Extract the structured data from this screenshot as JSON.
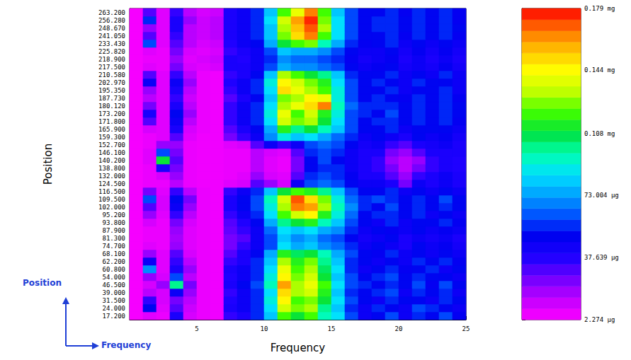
{
  "chart_data": {
    "type": "heatmap",
    "xlabel": "Frequency",
    "ylabel": "Position",
    "annotations": [
      "Position",
      "Frequency"
    ],
    "grid": false,
    "xlim": [
      0,
      25
    ],
    "xticks": [
      5,
      10,
      15,
      20,
      25
    ],
    "x": [
      0.5,
      1.5,
      2.5,
      3.5,
      4.5,
      5.5,
      6.5,
      7.5,
      8.5,
      9.5,
      10.5,
      11.5,
      12.5,
      13.5,
      14.5,
      15.5,
      16.5,
      17.5,
      18.5,
      19.5,
      20.5,
      21.5,
      22.5,
      23.5,
      24.5
    ],
    "categories": [
      "17.200",
      "24.000",
      "31.500",
      "39.000",
      "46.500",
      "54.000",
      "60.800",
      "62.200",
      "68.100",
      "74.700",
      "81.300",
      "87.900",
      "93.800",
      "95.200",
      "102.000",
      "109.500",
      "116.500",
      "124.500",
      "132.000",
      "138.800",
      "140.200",
      "146.100",
      "152.700",
      "159.300",
      "165.900",
      "171.800",
      "173.200",
      "180.120",
      "187.730",
      "195.350",
      "202.970",
      "210.580",
      "217.500",
      "218.900",
      "225.820",
      "233.430",
      "241.050",
      "248.670",
      "256.280",
      "263.200"
    ],
    "values": [
      [
        4,
        8,
        6,
        40,
        10,
        6,
        5,
        35,
        40,
        55,
        80,
        120,
        110,
        120,
        95,
        85,
        60,
        45,
        50,
        60,
        45,
        55,
        50,
        60,
        48
      ],
      [
        4,
        50,
        8,
        30,
        12,
        6,
        5,
        40,
        45,
        55,
        85,
        135,
        125,
        130,
        100,
        80,
        55,
        45,
        55,
        50,
        45,
        60,
        55,
        50,
        45
      ],
      [
        4,
        35,
        10,
        25,
        15,
        6,
        5,
        38,
        45,
        55,
        90,
        145,
        120,
        125,
        110,
        85,
        60,
        50,
        45,
        55,
        50,
        50,
        45,
        55,
        50
      ],
      [
        4,
        15,
        10,
        45,
        20,
        6,
        5,
        35,
        45,
        55,
        85,
        150,
        130,
        135,
        115,
        80,
        55,
        50,
        55,
        60,
        45,
        55,
        50,
        55,
        45
      ],
      [
        4,
        10,
        20,
        100,
        25,
        6,
        5,
        40,
        50,
        60,
        95,
        160,
        130,
        140,
        120,
        85,
        60,
        55,
        50,
        55,
        50,
        60,
        48,
        60,
        50
      ],
      [
        4,
        20,
        10,
        60,
        15,
        6,
        5,
        38,
        45,
        55,
        90,
        145,
        125,
        135,
        110,
        80,
        60,
        50,
        55,
        60,
        50,
        55,
        50,
        50,
        45
      ],
      [
        4,
        70,
        8,
        40,
        20,
        6,
        5,
        40,
        45,
        55,
        85,
        140,
        120,
        130,
        105,
        85,
        55,
        45,
        50,
        55,
        48,
        50,
        55,
        45,
        50
      ],
      [
        4,
        45,
        8,
        35,
        15,
        6,
        5,
        35,
        40,
        55,
        80,
        130,
        115,
        125,
        100,
        80,
        55,
        50,
        45,
        50,
        45,
        55,
        50,
        55,
        48
      ],
      [
        4,
        20,
        8,
        30,
        10,
        6,
        5,
        30,
        40,
        50,
        75,
        115,
        105,
        110,
        95,
        75,
        60,
        50,
        48,
        55,
        45,
        50,
        45,
        50,
        45
      ],
      [
        4,
        8,
        6,
        20,
        8,
        6,
        5,
        25,
        35,
        45,
        60,
        85,
        75,
        80,
        70,
        65,
        55,
        45,
        50,
        45,
        40,
        50,
        45,
        48,
        42
      ],
      [
        4,
        6,
        6,
        18,
        8,
        6,
        5,
        25,
        30,
        45,
        60,
        80,
        70,
        75,
        65,
        60,
        50,
        42,
        45,
        50,
        40,
        45,
        42,
        45,
        40
      ],
      [
        4,
        6,
        6,
        20,
        8,
        6,
        5,
        28,
        35,
        45,
        65,
        85,
        80,
        85,
        75,
        70,
        55,
        45,
        50,
        48,
        45,
        50,
        45,
        48,
        45
      ],
      [
        4,
        10,
        6,
        25,
        10,
        6,
        5,
        30,
        38,
        50,
        75,
        100,
        110,
        115,
        95,
        80,
        60,
        50,
        45,
        55,
        45,
        50,
        50,
        55,
        48
      ],
      [
        4,
        20,
        8,
        35,
        15,
        6,
        5,
        35,
        45,
        55,
        85,
        120,
        135,
        145,
        115,
        90,
        65,
        50,
        55,
        55,
        50,
        55,
        45,
        50,
        45
      ],
      [
        4,
        30,
        10,
        45,
        20,
        6,
        5,
        40,
        50,
        60,
        90,
        130,
        165,
        160,
        130,
        95,
        70,
        55,
        50,
        60,
        50,
        55,
        50,
        55,
        50
      ],
      [
        4,
        60,
        10,
        50,
        25,
        6,
        5,
        40,
        50,
        60,
        95,
        135,
        170,
        150,
        125,
        90,
        65,
        55,
        60,
        55,
        50,
        55,
        50,
        60,
        50
      ],
      [
        4,
        25,
        8,
        35,
        15,
        6,
        5,
        35,
        45,
        55,
        80,
        110,
        120,
        115,
        100,
        80,
        60,
        50,
        50,
        55,
        45,
        50,
        45,
        50,
        45
      ],
      [
        4,
        6,
        6,
        15,
        6,
        5,
        5,
        8,
        10,
        30,
        20,
        10,
        45,
        60,
        65,
        60,
        50,
        45,
        45,
        40,
        25,
        45,
        40,
        45,
        40
      ],
      [
        4,
        6,
        10,
        20,
        6,
        5,
        5,
        6,
        8,
        20,
        10,
        8,
        30,
        55,
        60,
        55,
        48,
        40,
        40,
        30,
        20,
        35,
        40,
        45,
        40
      ],
      [
        4,
        6,
        40,
        25,
        6,
        5,
        5,
        6,
        6,
        15,
        8,
        6,
        25,
        50,
        55,
        55,
        45,
        40,
        35,
        25,
        15,
        25,
        35,
        40,
        38
      ],
      [
        4,
        8,
        110,
        30,
        6,
        5,
        5,
        6,
        6,
        15,
        8,
        6,
        25,
        50,
        60,
        50,
        45,
        40,
        35,
        20,
        15,
        20,
        35,
        40,
        38
      ],
      [
        4,
        8,
        60,
        25,
        6,
        5,
        5,
        6,
        6,
        15,
        10,
        8,
        30,
        55,
        60,
        55,
        45,
        40,
        40,
        25,
        20,
        30,
        40,
        40,
        40
      ],
      [
        4,
        6,
        20,
        20,
        6,
        5,
        5,
        8,
        10,
        30,
        45,
        35,
        45,
        60,
        65,
        60,
        50,
        42,
        45,
        35,
        30,
        40,
        42,
        45,
        40
      ],
      [
        4,
        6,
        8,
        30,
        8,
        5,
        5,
        25,
        35,
        45,
        70,
        90,
        80,
        85,
        75,
        65,
        55,
        45,
        50,
        45,
        40,
        50,
        45,
        48,
        42
      ],
      [
        4,
        10,
        8,
        40,
        10,
        6,
        5,
        30,
        40,
        50,
        75,
        115,
        100,
        110,
        95,
        80,
        60,
        50,
        50,
        55,
        45,
        50,
        50,
        50,
        45
      ],
      [
        4,
        30,
        8,
        45,
        15,
        6,
        5,
        35,
        45,
        55,
        85,
        135,
        125,
        130,
        110,
        85,
        60,
        50,
        55,
        55,
        50,
        55,
        50,
        55,
        48
      ],
      [
        4,
        40,
        8,
        50,
        20,
        6,
        5,
        35,
        45,
        55,
        90,
        140,
        120,
        135,
        115,
        90,
        60,
        55,
        50,
        60,
        50,
        55,
        50,
        55,
        50
      ],
      [
        4,
        25,
        8,
        40,
        15,
        6,
        5,
        35,
        45,
        55,
        85,
        130,
        140,
        150,
        165,
        95,
        65,
        55,
        55,
        55,
        50,
        55,
        50,
        55,
        50
      ],
      [
        4,
        15,
        8,
        35,
        12,
        6,
        5,
        30,
        40,
        50,
        80,
        125,
        130,
        145,
        140,
        90,
        60,
        50,
        55,
        50,
        48,
        55,
        50,
        55,
        48
      ],
      [
        4,
        20,
        8,
        40,
        15,
        6,
        5,
        35,
        45,
        55,
        85,
        150,
        140,
        130,
        120,
        90,
        60,
        50,
        50,
        55,
        45,
        50,
        50,
        55,
        45
      ],
      [
        4,
        45,
        8,
        45,
        20,
        6,
        5,
        38,
        45,
        55,
        90,
        145,
        135,
        125,
        115,
        85,
        60,
        50,
        55,
        50,
        45,
        55,
        50,
        50,
        45
      ],
      [
        4,
        30,
        8,
        35,
        15,
        6,
        5,
        35,
        40,
        50,
        80,
        130,
        120,
        110,
        100,
        80,
        55,
        50,
        50,
        55,
        45,
        50,
        45,
        55,
        45
      ],
      [
        4,
        8,
        6,
        25,
        10,
        8,
        10,
        40,
        40,
        45,
        60,
        75,
        70,
        70,
        65,
        60,
        50,
        45,
        48,
        50,
        42,
        45,
        42,
        48,
        42
      ],
      [
        4,
        6,
        6,
        20,
        8,
        10,
        12,
        40,
        38,
        45,
        55,
        70,
        65,
        65,
        60,
        55,
        48,
        42,
        45,
        48,
        40,
        45,
        40,
        45,
        40
      ],
      [
        4,
        8,
        6,
        25,
        10,
        8,
        10,
        35,
        40,
        45,
        60,
        80,
        75,
        75,
        70,
        60,
        50,
        45,
        45,
        50,
        42,
        48,
        42,
        48,
        42
      ],
      [
        4,
        60,
        8,
        30,
        15,
        10,
        12,
        38,
        45,
        50,
        75,
        110,
        120,
        125,
        95,
        75,
        55,
        48,
        50,
        55,
        45,
        50,
        45,
        50,
        45
      ],
      [
        4,
        30,
        8,
        35,
        15,
        12,
        15,
        40,
        45,
        55,
        80,
        125,
        150,
        165,
        120,
        85,
        60,
        50,
        50,
        55,
        48,
        55,
        50,
        55,
        48
      ],
      [
        4,
        20,
        8,
        40,
        15,
        12,
        15,
        40,
        45,
        55,
        80,
        130,
        155,
        170,
        130,
        85,
        60,
        50,
        55,
        55,
        50,
        55,
        50,
        55,
        50
      ],
      [
        4,
        55,
        8,
        40,
        20,
        12,
        15,
        40,
        45,
        55,
        85,
        135,
        160,
        175,
        125,
        85,
        60,
        50,
        55,
        55,
        50,
        55,
        50,
        55,
        48
      ],
      [
        4,
        30,
        8,
        35,
        15,
        10,
        12,
        40,
        45,
        55,
        80,
        120,
        140,
        165,
        120,
        80,
        60,
        50,
        50,
        55,
        48,
        55,
        50,
        55,
        48
      ]
    ],
    "colorbar": {
      "range": [
        2.274,
        179
      ],
      "ticks": [
        {
          "value": 179,
          "label": "0.179 mg"
        },
        {
          "value": 144,
          "label": "0.144 mg"
        },
        {
          "value": 108,
          "label": "0.108 mg"
        },
        {
          "value": 73.004,
          "label": "73.004 µg"
        },
        {
          "value": 37.639,
          "label": "37.639 µg"
        },
        {
          "value": 2.274,
          "label": "2.274 µg"
        }
      ]
    }
  }
}
